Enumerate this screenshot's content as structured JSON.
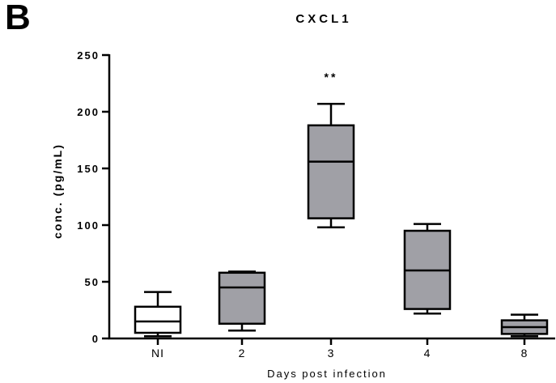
{
  "panel_label": "B",
  "chart_data": {
    "type": "box",
    "title": "CXCL1",
    "xlabel": "Days post infection",
    "ylabel": "conc. (pg/mL)",
    "ylim": [
      0,
      250
    ],
    "yticks": [
      "0",
      "50",
      "100",
      "150",
      "200",
      "250"
    ],
    "categories": [
      "NI",
      "2",
      "3",
      "4",
      "8"
    ],
    "boxes": [
      {
        "category": "NI",
        "min": 2,
        "q1": 5,
        "median": 15,
        "q3": 28,
        "max": 41,
        "fill": "#ffffff"
      },
      {
        "category": "2",
        "min": 7,
        "q1": 13,
        "median": 45,
        "q3": 58,
        "max": 59,
        "fill": "#a0a0a6"
      },
      {
        "category": "3",
        "min": 98,
        "q1": 106,
        "median": 156,
        "q3": 188,
        "max": 207,
        "fill": "#a0a0a6"
      },
      {
        "category": "4",
        "min": 22,
        "q1": 26,
        "median": 60,
        "q3": 95,
        "max": 101,
        "fill": "#a0a0a6"
      },
      {
        "category": "8",
        "min": 2,
        "q1": 4,
        "median": 10,
        "q3": 16,
        "max": 21,
        "fill": "#a0a0a6"
      }
    ],
    "annotations": [
      {
        "category": "3",
        "text": "**"
      }
    ]
  }
}
